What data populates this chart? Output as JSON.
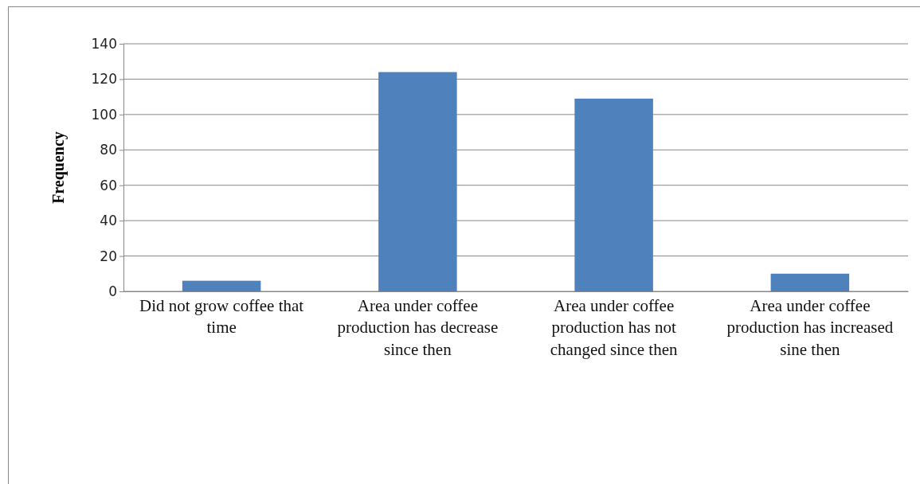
{
  "chart_data": {
    "type": "bar",
    "ylabel": "Frequency",
    "categories": [
      "Did not grow coffee that time",
      "Area under coffee production has decrease since then",
      "Area under coffee production has not changed since then",
      "Area under coffee production has increased sine then"
    ],
    "values": [
      6,
      124,
      109,
      10
    ],
    "color": "#4f81bd",
    "ylim": [
      0,
      140
    ],
    "yticks": [
      0,
      20,
      40,
      60,
      80,
      100,
      120,
      140
    ],
    "grid": "y"
  }
}
